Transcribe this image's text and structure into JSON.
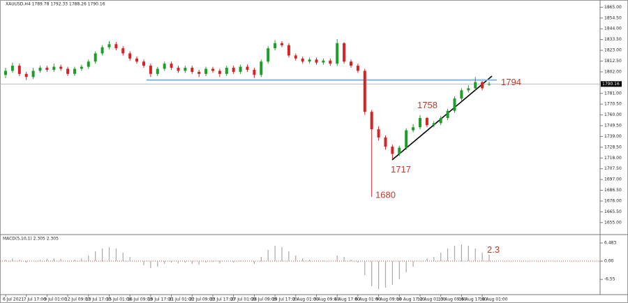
{
  "chart_data": [
    {
      "type": "candlestick",
      "title": "XAUUSD,H4  1789.78 1792.33 1788.26 1790.16",
      "categories": [
        "6 Jul 2021",
        null,
        null,
        "7 Jul 17:00",
        null,
        null,
        "9 Jul 01:00",
        null,
        null,
        "12 Jul 09:00",
        null,
        null,
        "13 Jul 17:00",
        null,
        null,
        "15 Jul 01:00",
        null,
        null,
        "16 Jul 09:00",
        null,
        null,
        "19 Jul 17:00",
        null,
        null,
        "21 Jul 01:00",
        null,
        null,
        "22 Jul 09:00",
        null,
        null,
        "23 Jul 17:00",
        null,
        null,
        "27 Jul 01:00",
        null,
        null,
        "28 Jul 09:00",
        null,
        null,
        "29 Jul 17:00",
        null,
        null,
        "2 Aug 01:00",
        null,
        null,
        "3 Aug 09:00",
        null,
        null,
        "4 Aug 17:00",
        null,
        null,
        "6 Aug 01:00",
        null,
        null,
        "9 Aug 09:00",
        null,
        null,
        "10 Aug 17:00",
        null,
        null,
        "12 Aug 01:00",
        null,
        null,
        "13 Aug 09:00",
        null,
        null,
        "16 Aug 17:00",
        null,
        null,
        "18 Aug 01:00",
        null
      ],
      "open": [
        1799,
        1803,
        1808,
        1800,
        1797,
        1803,
        1806,
        1804,
        1807,
        1805,
        1800,
        1805,
        1807,
        1812,
        1820,
        1826,
        1829,
        1825,
        1820,
        1815,
        1812,
        1808,
        1800,
        1805,
        1810,
        1806,
        1803,
        1806,
        1802,
        1800,
        1805,
        1803,
        1800,
        1806,
        1802,
        1807,
        1804,
        1799,
        1812,
        1825,
        1830,
        1828,
        1818,
        1815,
        1812,
        1814,
        1811,
        1813,
        1810,
        1830,
        1812,
        1808,
        1803,
        1763,
        1746,
        1738,
        1729,
        1722,
        1728,
        1745,
        1748,
        1757,
        1750,
        1752,
        1757,
        1764,
        1776,
        1784,
        1786,
        1792,
        1789.78
      ],
      "high": [
        1806,
        1811,
        1810,
        1802,
        1806,
        1808,
        1808,
        1810,
        1809,
        1807,
        1807,
        1809,
        1814,
        1822,
        1828,
        1832,
        1831,
        1827,
        1822,
        1817,
        1814,
        1810,
        1807,
        1812,
        1812,
        1808,
        1808,
        1808,
        1804,
        1807,
        1807,
        1805,
        1808,
        1808,
        1809,
        1809,
        1806,
        1814,
        1827,
        1833,
        1832,
        1830,
        1820,
        1817,
        1816,
        1816,
        1815,
        1815,
        1834,
        1831,
        1814,
        1810,
        1805,
        1765,
        1749,
        1740,
        1731,
        1730,
        1747,
        1751,
        1760,
        1758,
        1754,
        1759,
        1766,
        1778,
        1786,
        1789,
        1797,
        1793,
        1792.33
      ],
      "low": [
        1796,
        1801,
        1798,
        1794,
        1795,
        1801,
        1802,
        1802,
        1803,
        1798,
        1798,
        1803,
        1805,
        1810,
        1818,
        1824,
        1823,
        1818,
        1813,
        1810,
        1806,
        1797,
        1798,
        1803,
        1804,
        1801,
        1801,
        1800,
        1797,
        1798,
        1801,
        1797,
        1798,
        1800,
        1800,
        1802,
        1796,
        1797,
        1810,
        1823,
        1826,
        1816,
        1813,
        1810,
        1810,
        1809,
        1809,
        1808,
        1808,
        1810,
        1806,
        1801,
        1760,
        1680,
        1735,
        1726,
        1717,
        1720,
        1726,
        1743,
        1746,
        1748,
        1748,
        1750,
        1755,
        1762,
        1774,
        1782,
        1784,
        1784,
        1788.26
      ],
      "close": [
        1803,
        1808,
        1800,
        1797,
        1803,
        1806,
        1804,
        1807,
        1805,
        1800,
        1805,
        1807,
        1812,
        1820,
        1826,
        1829,
        1825,
        1820,
        1815,
        1812,
        1808,
        1800,
        1805,
        1810,
        1806,
        1803,
        1806,
        1802,
        1800,
        1805,
        1803,
        1800,
        1806,
        1802,
        1807,
        1804,
        1799,
        1812,
        1825,
        1830,
        1828,
        1818,
        1815,
        1812,
        1814,
        1811,
        1813,
        1810,
        1830,
        1812,
        1808,
        1803,
        1763,
        1746,
        1738,
        1729,
        1722,
        1728,
        1745,
        1748,
        1757,
        1750,
        1752,
        1757,
        1764,
        1776,
        1784,
        1786,
        1792,
        1786,
        1790.16
      ],
      "up_color": "#1f9d2a",
      "down_color": "#d42424",
      "ylim": [
        1646,
        1868
      ],
      "yticks": [
        {
          "value": 1865,
          "label": "1865.00"
        },
        {
          "value": 1854.5,
          "label": "1854.50"
        },
        {
          "value": 1844,
          "label": "1844.00"
        },
        {
          "value": 1833.5,
          "label": "1833.50"
        },
        {
          "value": 1823,
          "label": "1823.00"
        },
        {
          "value": 1812.5,
          "label": "1812.50"
        },
        {
          "value": 1802,
          "label": "1802.00"
        },
        {
          "value": 1781,
          "label": "1781.00"
        },
        {
          "value": 1770.5,
          "label": "1770.50"
        },
        {
          "value": 1760,
          "label": "1760.00"
        },
        {
          "value": 1749.5,
          "label": "1749.50"
        },
        {
          "value": 1739,
          "label": "1739.00"
        },
        {
          "value": 1728.5,
          "label": "1728.50"
        },
        {
          "value": 1718,
          "label": "1718.00"
        },
        {
          "value": 1707.5,
          "label": "1707.50"
        },
        {
          "value": 1697,
          "label": "1697.00"
        },
        {
          "value": 1686.5,
          "label": "1686.50"
        },
        {
          "value": 1676,
          "label": "1676.00"
        },
        {
          "value": 1665.5,
          "label": "1665.50"
        },
        {
          "value": 1655,
          "label": "1655.00"
        }
      ],
      "last_price": {
        "value": 1790.16,
        "label": "1790.16"
      },
      "level_color": "#7fb8e8",
      "annotations": [
        {
          "text": "1794",
          "value": 1794
        },
        {
          "text": "1758",
          "value": 1758
        },
        {
          "text": "1717",
          "value": 1717
        },
        {
          "text": "1680",
          "value": 1680
        }
      ],
      "annotation_color": "#c0392b"
    },
    {
      "type": "bar",
      "title": "MACD(5,10,1) 2.305 2.305",
      "values": [
        0.5,
        1,
        0.5,
        -0.5,
        0,
        0.5,
        0.8,
        1,
        0.8,
        0.2,
        0.5,
        1,
        2,
        3.5,
        4.5,
        5,
        4.5,
        3,
        1.5,
        0,
        -1.5,
        -2.5,
        -2,
        -1,
        -0.5,
        -0.8,
        -0.5,
        -1,
        -1.2,
        -0.5,
        -0.3,
        -0.8,
        -0.2,
        -0.5,
        0.2,
        0,
        -1,
        1.5,
        4,
        5.5,
        5,
        3.5,
        2,
        1,
        0.5,
        0.3,
        0.2,
        0,
        2,
        1.5,
        0.5,
        -0.5,
        -5,
        -9,
        -10,
        -9.5,
        -8.5,
        -6.5,
        -4,
        -2,
        0,
        1,
        1.5,
        3,
        4.5,
        5.5,
        6,
        5.5,
        4.5,
        3,
        2.3
      ],
      "color": "#a8a8a8",
      "ylim": [
        -11,
        7
      ],
      "yticks": [
        6.483,
        {
          "value": 0,
          "label": "0.00"
        },
        -6.55
      ],
      "zero_color": "#d04040",
      "annotations": [
        {
          "text": "2.3",
          "value": 2.3
        }
      ],
      "annotation_color": "#c0392b"
    }
  ]
}
